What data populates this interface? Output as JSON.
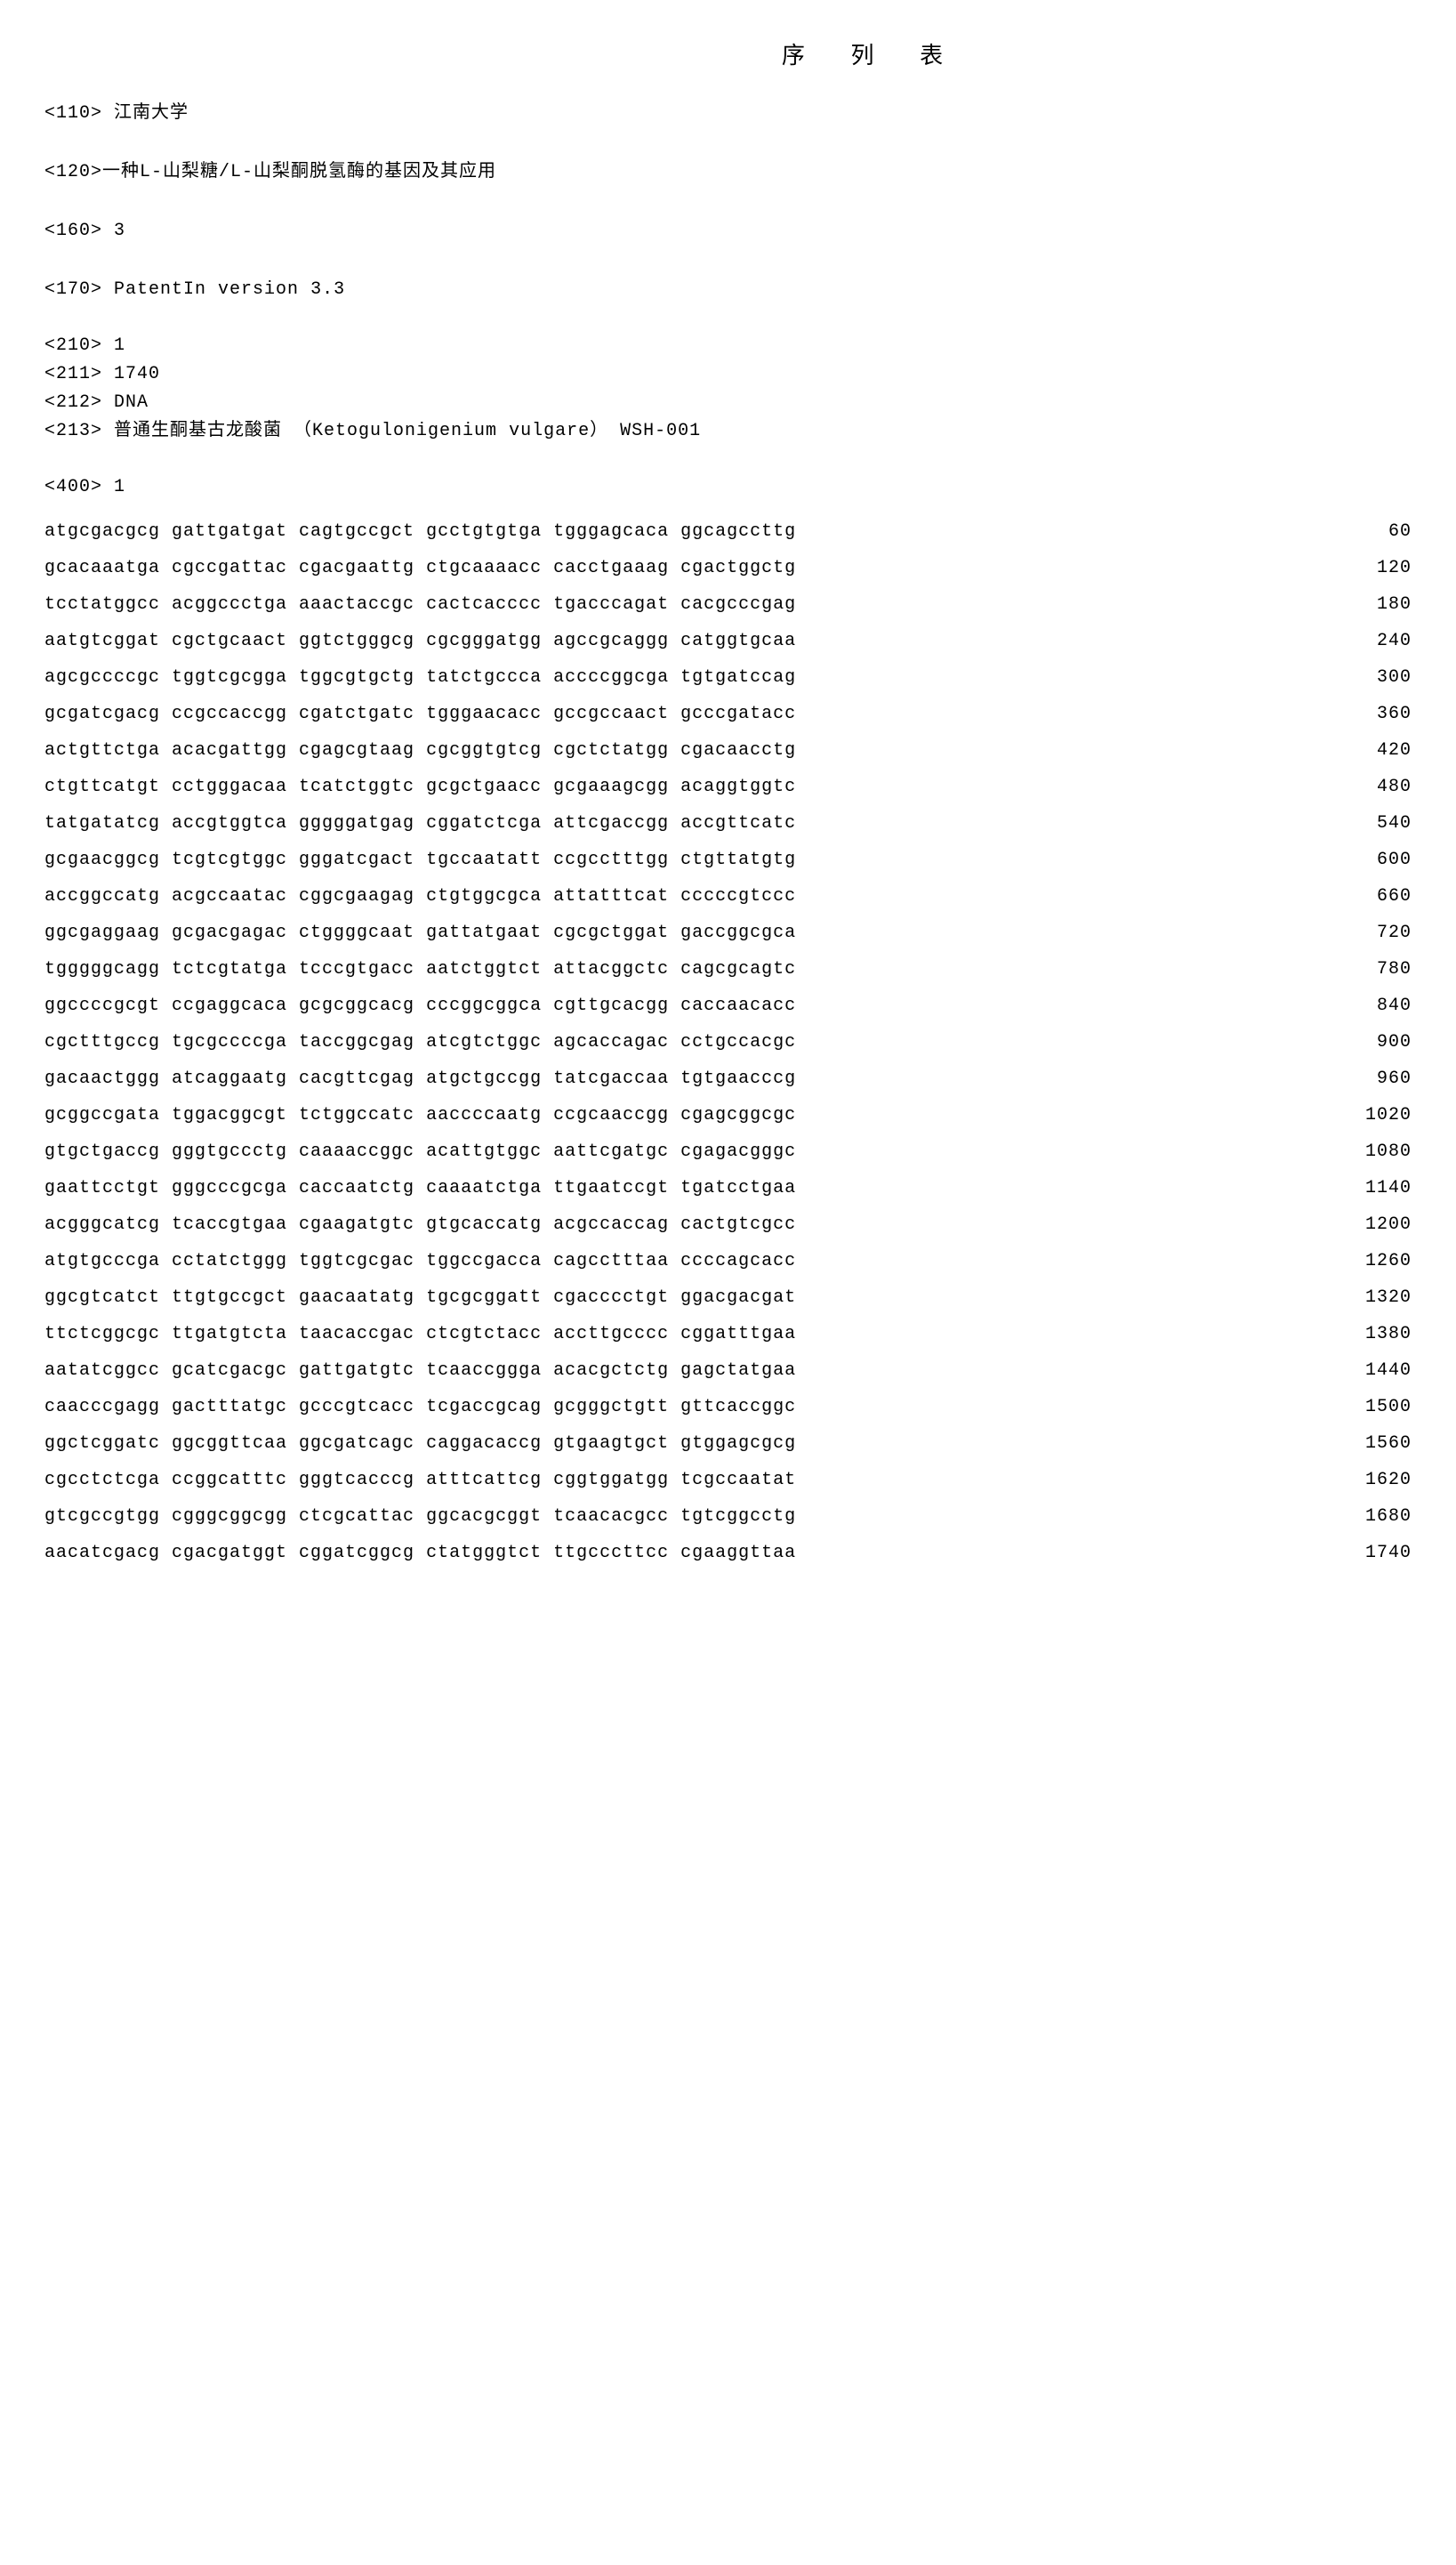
{
  "title": "序 列 表",
  "header": {
    "applicant_tag": "<110>",
    "applicant": "江南大学",
    "invention_tag": "<120>",
    "invention": "一种L-山梨糖/L-山梨酮脱氢酶的基因及其应用",
    "numseq_tag": "<160>",
    "numseq": "3",
    "software_tag": "<170>",
    "software": "PatentIn version 3.3"
  },
  "seq1": {
    "id_tag": "<210>",
    "id": "1",
    "length_tag": "<211>",
    "length": "1740",
    "type_tag": "<212>",
    "type": "DNA",
    "organism_tag": "<213>",
    "organism": "普通生酮基古龙酸菌 （Ketogulonigenium vulgare） WSH-001",
    "seq_tag": "<400>",
    "seq_num": "1",
    "rows": [
      {
        "s": "atgcgacgcg gattgatgat cagtgccgct gcctgtgtga tgggagcaca ggcagccttg",
        "p": "60"
      },
      {
        "s": "gcacaaatga cgccgattac cgacgaattg ctgcaaaacc cacctgaaag cgactggctg",
        "p": "120"
      },
      {
        "s": "tcctatggcc acggccctga aaactaccgc cactcacccc tgacccagat cacgcccgag",
        "p": "180"
      },
      {
        "s": "aatgtcggat cgctgcaact ggtctgggcg cgcgggatgg agccgcaggg catggtgcaa",
        "p": "240"
      },
      {
        "s": "agcgccccgc tggtcgcgga tggcgtgctg tatctgccca accccggcga tgtgatccag",
        "p": "300"
      },
      {
        "s": "gcgatcgacg ccgccaccgg cgatctgatc tgggaacacc gccgccaact gcccgatacc",
        "p": "360"
      },
      {
        "s": "actgttctga acacgattgg cgagcgtaag cgcggtgtcg cgctctatgg cgacaacctg",
        "p": "420"
      },
      {
        "s": "ctgttcatgt cctgggacaa tcatctggtc gcgctgaacc gcgaaagcgg acaggtggtc",
        "p": "480"
      },
      {
        "s": "tatgatatcg accgtggtca gggggatgag cggatctcga attcgaccgg accgttcatc",
        "p": "540"
      },
      {
        "s": "gcgaacggcg tcgtcgtggc gggatcgact tgccaatatt ccgcctttgg ctgttatgtg",
        "p": "600"
      },
      {
        "s": "accggccatg acgccaatac cggcgaagag ctgtggcgca attatttcat cccccgtccc",
        "p": "660"
      },
      {
        "s": "ggcgaggaag gcgacgagac ctggggcaat gattatgaat cgcgctggat gaccggcgca",
        "p": "720"
      },
      {
        "s": "tgggggcagg tctcgtatga tcccgtgacc aatctggtct attacggctc cagcgcagtc",
        "p": "780"
      },
      {
        "s": "ggccccgcgt ccgaggcaca gcgcggcacg cccggcggca cgttgcacgg caccaacacc",
        "p": "840"
      },
      {
        "s": "cgctttgccg tgcgccccga taccggcgag atcgtctggc agcaccagac cctgccacgc",
        "p": "900"
      },
      {
        "s": "gacaactggg atcaggaatg cacgttcgag atgctgccgg tatcgaccaa tgtgaacccg",
        "p": "960"
      },
      {
        "s": "gcggccgata tggacggcgt tctggccatc aaccccaatg ccgcaaccgg cgagcggcgc",
        "p": "1020"
      },
      {
        "s": "gtgctgaccg gggtgccctg caaaaccggc acattgtggc aattcgatgc cgagacgggc",
        "p": "1080"
      },
      {
        "s": "gaattcctgt gggcccgcga caccaatctg caaaatctga ttgaatccgt tgatcctgaa",
        "p": "1140"
      },
      {
        "s": "acgggcatcg tcaccgtgaa cgaagatgtc gtgcaccatg acgccaccag cactgtcgcc",
        "p": "1200"
      },
      {
        "s": "atgtgcccga cctatctggg tggtcgcgac tggccgacca cagcctttaa ccccagcacc",
        "p": "1260"
      },
      {
        "s": "ggcgtcatct ttgtgccgct gaacaatatg tgcgcggatt cgacccctgt ggacgacgat",
        "p": "1320"
      },
      {
        "s": "ttctcggcgc ttgatgtcta taacaccgac ctcgtctacc accttgcccc cggatttgaa",
        "p": "1380"
      },
      {
        "s": "aatatcggcc gcatcgacgc gattgatgtc tcaaccggga acacgctctg gagctatgaa",
        "p": "1440"
      },
      {
        "s": "caacccgagg gactttatgc gcccgtcacc tcgaccgcag gcgggctgtt gttcaccggc",
        "p": "1500"
      },
      {
        "s": "ggctcggatc ggcggttcaa ggcgatcagc caggacaccg gtgaagtgct gtggagcgcg",
        "p": "1560"
      },
      {
        "s": "cgcctctcga ccggcatttc gggtcacccg atttcattcg cggtggatgg tcgccaatat",
        "p": "1620"
      },
      {
        "s": "gtcgccgtgg cgggcggcgg ctcgcattac ggcacgcggt tcaacacgcc tgtcggcctg",
        "p": "1680"
      },
      {
        "s": "aacatcgacg cgacgatggt cggatcggcg ctatgggtct ttgcccttcc cgaaggttaa",
        "p": "1740"
      }
    ]
  }
}
